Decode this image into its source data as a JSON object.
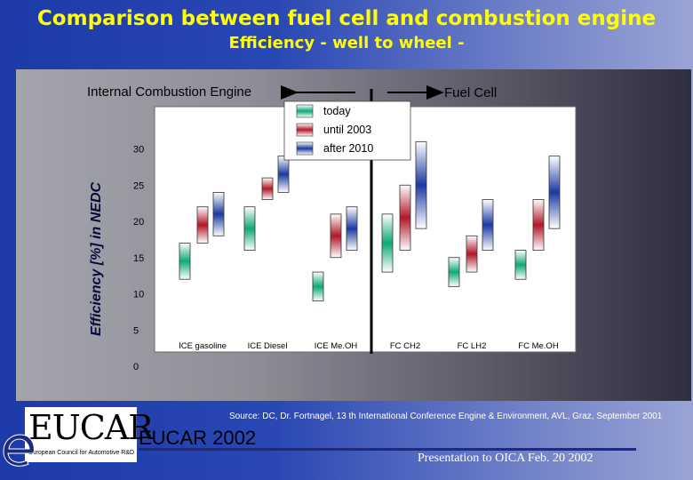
{
  "slide": {
    "title": "Comparison between fuel cell and combustion engine",
    "subtitle": "Efficiency - well to wheel -",
    "source": "Source: DC, Dr. Fortnagel, 13 th International Conference Engine & Environment, AVL, Graz, September 2001",
    "logo_text": "EUCAR",
    "logo_subtext": "European Council for Automotive R&D",
    "footer_year": "EUCAR 2002",
    "footer_presentation": "Presentation to OICA Feb. 20 2002"
  },
  "chart_data": {
    "type": "bar",
    "subtype": "range",
    "ylabel": "Efficiency [%] in NEDC",
    "ylim": [
      0,
      35
    ],
    "yticks": [
      0,
      5,
      10,
      15,
      20,
      25,
      30
    ],
    "grid": false,
    "categories": [
      "ICE gasoline",
      "ICE Diesel",
      "ICE Me.OH",
      "FC CH2",
      "FC LH2",
      "FC Me.OH"
    ],
    "group_labels": {
      "left": "Internal Combustion Engine",
      "right": "Fuel Cell"
    },
    "legend": {
      "placement": "top-center",
      "entries": [
        "today",
        "until 2003",
        "after 2010"
      ]
    },
    "colors": {
      "today": "#10a878",
      "until 2003": "#b01828",
      "after 2010": "#1c3aa0"
    },
    "series": [
      {
        "name": "today",
        "ranges": [
          [
            12,
            17
          ],
          [
            16,
            22
          ],
          [
            9,
            13
          ],
          [
            13,
            21
          ],
          [
            11,
            15
          ],
          [
            12,
            16
          ]
        ]
      },
      {
        "name": "until 2003",
        "ranges": [
          [
            17,
            22
          ],
          [
            23,
            26
          ],
          [
            15,
            21
          ],
          [
            16,
            25
          ],
          [
            13,
            18
          ],
          [
            16,
            23
          ]
        ]
      },
      {
        "name": "after 2010",
        "ranges": [
          [
            18,
            24
          ],
          [
            24,
            29
          ],
          [
            16,
            22
          ],
          [
            19,
            31
          ],
          [
            16,
            23
          ],
          [
            19,
            29
          ]
        ]
      }
    ]
  }
}
